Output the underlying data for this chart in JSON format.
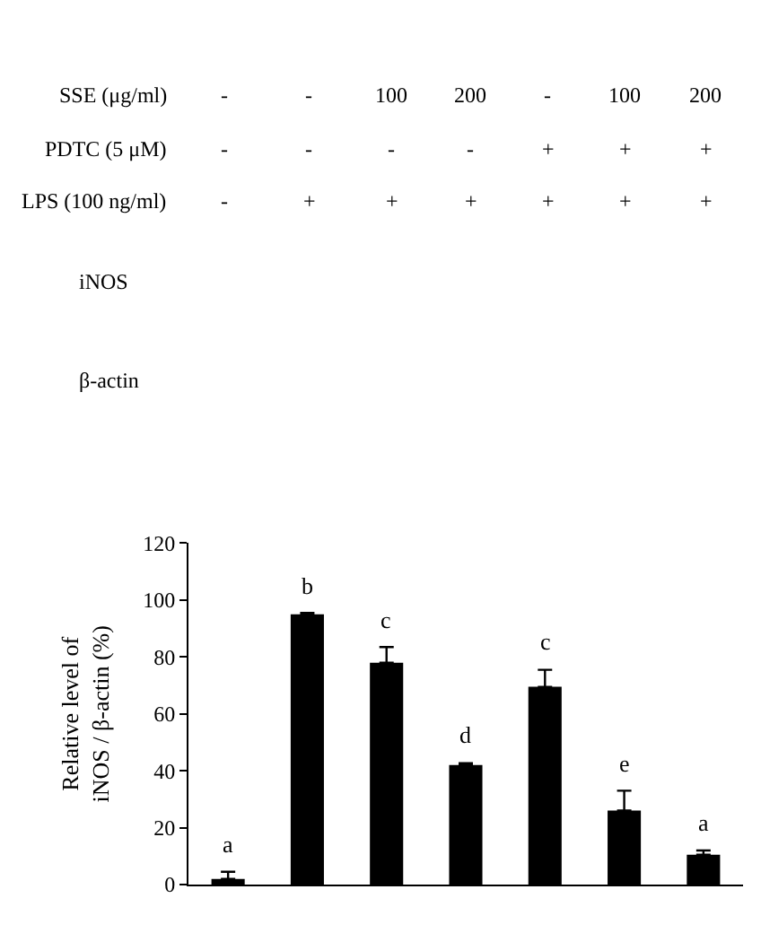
{
  "chart_data": {
    "type": "bar",
    "ylabel": "Relative level of\niNOS / β-actin (%)",
    "categories": [
      null,
      null,
      null,
      null,
      null,
      null,
      null
    ],
    "values": [
      2,
      95,
      78,
      42,
      69.5,
      26,
      10.5
    ],
    "errors": [
      2.5,
      0.5,
      5.5,
      0.7,
      6,
      7,
      1.5
    ],
    "value_labels": [
      "a",
      "b",
      "c",
      "d",
      "c",
      "e",
      "a"
    ],
    "color": "#000000",
    "ylim": [
      0,
      120
    ],
    "yticks": [
      0,
      20,
      40,
      60,
      80,
      100,
      120
    ],
    "legend": false,
    "annotations": [
      "SSE (μg/ml)",
      "-",
      "-",
      "100",
      "200",
      "-",
      "100",
      "200",
      "PDTC (5 μM)",
      "-",
      "-",
      "-",
      "-",
      "+",
      "+",
      "+",
      "LPS (100 ng/ml)",
      "-",
      "+",
      "+",
      "+",
      "+",
      "+",
      "+",
      "iNOS",
      "β-actin"
    ]
  }
}
